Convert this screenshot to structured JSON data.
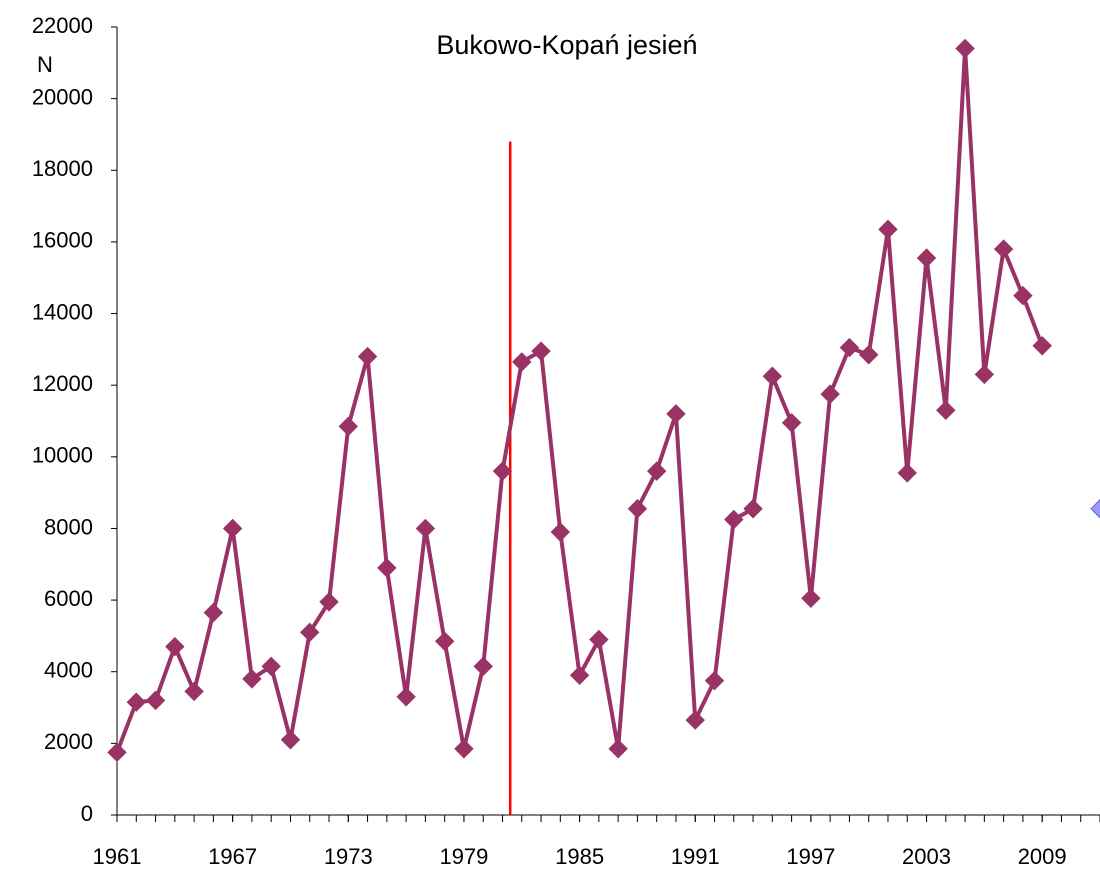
{
  "chart_data": {
    "type": "line",
    "title": "Bukowo-Kopań jesień",
    "y_label": "N",
    "x": [
      1961,
      1962,
      1963,
      1964,
      1965,
      1966,
      1967,
      1968,
      1969,
      1970,
      1971,
      1972,
      1973,
      1974,
      1975,
      1976,
      1977,
      1978,
      1979,
      1980,
      1981,
      1982,
      1983,
      1984,
      1985,
      1986,
      1987,
      1988,
      1989,
      1990,
      1991,
      1992,
      1993,
      1994,
      1995,
      1996,
      1997,
      1998,
      1999,
      2000,
      2001,
      2002,
      2003,
      2004,
      2005,
      2006,
      2007,
      2008,
      2009
    ],
    "series": [
      {
        "color": "#993366",
        "marker": "diamond",
        "values": [
          1750,
          3150,
          3200,
          4700,
          3450,
          5650,
          8000,
          3800,
          4150,
          2100,
          5100,
          5950,
          10850,
          12800,
          6900,
          3300,
          8000,
          4850,
          1850,
          4150,
          9600,
          12650,
          12950,
          7900,
          3900,
          4900,
          1850,
          8550,
          9600,
          11200,
          2650,
          3750,
          8250,
          8550,
          12250,
          10950,
          6050,
          11750,
          13050,
          12850,
          16350,
          9550,
          15550,
          11300,
          21400,
          12300,
          15800,
          14500,
          13100
        ]
      },
      {
        "color": "#9999ff",
        "marker": "diamond",
        "x": [
          2012
        ],
        "values": [
          8550
        ]
      }
    ],
    "marker_line": {
      "x": 1981.4,
      "ylim": [
        0,
        18800
      ],
      "color": "#ff0000"
    },
    "xlim": [
      1961,
      2012
    ],
    "xticks": [
      1961,
      1967,
      1973,
      1979,
      1985,
      1991,
      1997,
      2003,
      2009
    ],
    "x_minor_tick_step": 1,
    "ylim": [
      0,
      22000
    ],
    "yticks": [
      0,
      2000,
      4000,
      6000,
      8000,
      10000,
      12000,
      14000,
      16000,
      18000,
      20000,
      22000
    ]
  }
}
